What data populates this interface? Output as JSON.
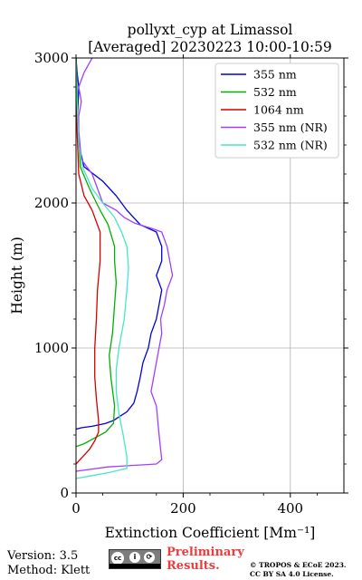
{
  "chart_data": {
    "type": "line",
    "title": "pollyxt_cyp at Limassol",
    "subtitle": "[Averaged] 20230223 10:00-10:59",
    "xlabel": "Extinction Coefficient [Mm⁻¹]",
    "ylabel": "Height (m)",
    "xlim": [
      0,
      500
    ],
    "ylim": [
      0,
      3000
    ],
    "x_ticks": [
      0,
      200,
      400
    ],
    "y_ticks": [
      0,
      1000,
      2000,
      3000
    ],
    "grid": true,
    "legend_position": "top-right",
    "series": [
      {
        "name": "355 nm",
        "color": "#0000d6",
        "points": [
          [
            0,
            440
          ],
          [
            10,
            450
          ],
          [
            30,
            460
          ],
          [
            55,
            480
          ],
          [
            70,
            500
          ],
          [
            95,
            560
          ],
          [
            108,
            620
          ],
          [
            114,
            700
          ],
          [
            120,
            800
          ],
          [
            125,
            900
          ],
          [
            135,
            1000
          ],
          [
            140,
            1100
          ],
          [
            150,
            1200
          ],
          [
            155,
            1300
          ],
          [
            160,
            1400
          ],
          [
            150,
            1500
          ],
          [
            160,
            1600
          ],
          [
            160,
            1700
          ],
          [
            150,
            1800
          ],
          [
            120,
            1850
          ],
          [
            95,
            1950
          ],
          [
            75,
            2050
          ],
          [
            50,
            2150
          ],
          [
            15,
            2250
          ],
          [
            5,
            2400
          ],
          [
            3,
            2600
          ],
          [
            5,
            2800
          ],
          [
            2,
            2900
          ],
          [
            0,
            3000
          ]
        ]
      },
      {
        "name": "532 nm",
        "color": "#00b000",
        "points": [
          [
            0,
            320
          ],
          [
            15,
            340
          ],
          [
            30,
            370
          ],
          [
            55,
            420
          ],
          [
            70,
            480
          ],
          [
            72,
            600
          ],
          [
            65,
            800
          ],
          [
            62,
            950
          ],
          [
            68,
            1100
          ],
          [
            72,
            1300
          ],
          [
            75,
            1450
          ],
          [
            72,
            1600
          ],
          [
            72,
            1700
          ],
          [
            60,
            1850
          ],
          [
            45,
            1950
          ],
          [
            25,
            2100
          ],
          [
            8,
            2250
          ],
          [
            4,
            2500
          ],
          [
            2,
            2800
          ],
          [
            0,
            3000
          ]
        ]
      },
      {
        "name": "1064 nm",
        "color": "#d40000",
        "points": [
          [
            0,
            200
          ],
          [
            10,
            240
          ],
          [
            25,
            300
          ],
          [
            35,
            360
          ],
          [
            42,
            420
          ],
          [
            42,
            500
          ],
          [
            38,
            650
          ],
          [
            35,
            800
          ],
          [
            35,
            1000
          ],
          [
            38,
            1200
          ],
          [
            40,
            1400
          ],
          [
            45,
            1600
          ],
          [
            45,
            1800
          ],
          [
            30,
            1950
          ],
          [
            15,
            2050
          ],
          [
            5,
            2200
          ],
          [
            2,
            2500
          ],
          [
            0,
            3000
          ]
        ]
      },
      {
        "name": "355 nm (NR)",
        "color": "#a040ff",
        "points": [
          [
            0,
            150
          ],
          [
            60,
            180
          ],
          [
            150,
            200
          ],
          [
            160,
            230
          ],
          [
            158,
            300
          ],
          [
            155,
            400
          ],
          [
            150,
            600
          ],
          [
            140,
            700
          ],
          [
            150,
            900
          ],
          [
            160,
            1100
          ],
          [
            158,
            1200
          ],
          [
            165,
            1300
          ],
          [
            170,
            1400
          ],
          [
            180,
            1500
          ],
          [
            175,
            1600
          ],
          [
            170,
            1700
          ],
          [
            160,
            1800
          ],
          [
            145,
            1820
          ],
          [
            110,
            1860
          ],
          [
            90,
            1900
          ],
          [
            75,
            1950
          ],
          [
            50,
            2000
          ],
          [
            40,
            2100
          ],
          [
            30,
            2200
          ],
          [
            10,
            2300
          ],
          [
            5,
            2500
          ],
          [
            5,
            2600
          ],
          [
            10,
            2700
          ],
          [
            5,
            2800
          ],
          [
            15,
            2900
          ],
          [
            30,
            3000
          ]
        ]
      },
      {
        "name": "532 nm (NR)",
        "color": "#44e8c8",
        "points": [
          [
            0,
            100
          ],
          [
            30,
            120
          ],
          [
            60,
            140
          ],
          [
            95,
            170
          ],
          [
            95,
            250
          ],
          [
            88,
            400
          ],
          [
            80,
            550
          ],
          [
            75,
            700
          ],
          [
            75,
            850
          ],
          [
            80,
            1000
          ],
          [
            90,
            1200
          ],
          [
            95,
            1400
          ],
          [
            98,
            1550
          ],
          [
            95,
            1700
          ],
          [
            85,
            1800
          ],
          [
            72,
            1900
          ],
          [
            50,
            2000
          ],
          [
            30,
            2100
          ],
          [
            12,
            2250
          ],
          [
            5,
            2400
          ],
          [
            2,
            2700
          ],
          [
            0,
            3000
          ]
        ]
      }
    ]
  },
  "footer": {
    "version": "Version: 3.5",
    "method": "Method: Klett",
    "preliminary_line1": "Preliminary",
    "preliminary_line2": "Results.",
    "license_line1": "© TROPOS & ECoE 2023.",
    "license_line2": "CC BY SA 4.0 License."
  }
}
